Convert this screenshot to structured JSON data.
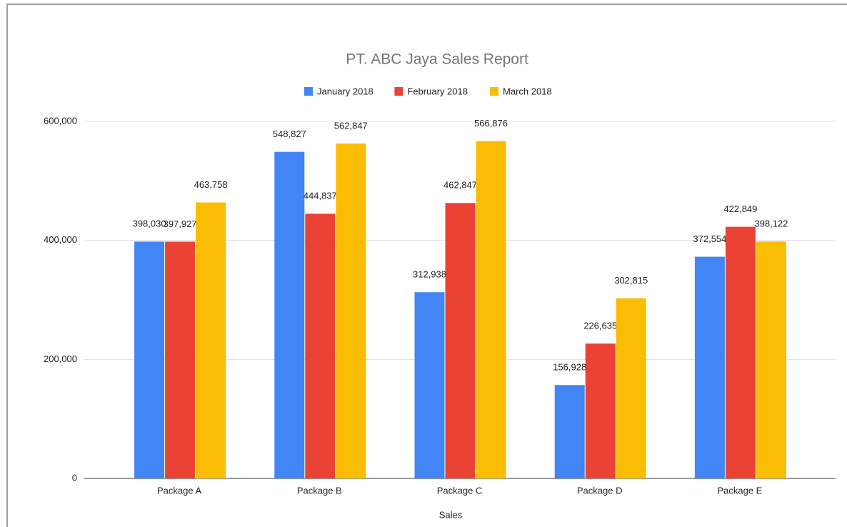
{
  "chart_data": {
    "type": "bar",
    "title": "PT. ABC Jaya Sales Report",
    "xlabel": "Sales",
    "categories": [
      "Package A",
      "Package B",
      "Package C",
      "Package D",
      "Package E"
    ],
    "series": [
      {
        "name": "January 2018",
        "color": "#4285f4",
        "values": [
          398030,
          548827,
          312938,
          156928,
          372554
        ],
        "value_labels": [
          "398,030",
          "548,827",
          "312,938",
          "156,928",
          "372,554"
        ]
      },
      {
        "name": "February 2018",
        "color": "#ea4335",
        "values": [
          397927,
          444837,
          462847,
          226635,
          422849
        ],
        "value_labels": [
          "397,927",
          "444,837",
          "462,847",
          "226,635",
          "422,849"
        ]
      },
      {
        "name": "March 2018",
        "color": "#fbbc04",
        "values": [
          463758,
          562847,
          566876,
          302815,
          398122
        ],
        "value_labels": [
          "463,758",
          "562,847",
          "566,876",
          "302,815",
          "398,122"
        ]
      }
    ],
    "ylim": [
      0,
      600000
    ],
    "yticks": [
      0,
      {
        "value": 200000,
        "label": "200,000"
      },
      {
        "value": 400000,
        "label": "400,000"
      },
      {
        "value": 600000,
        "label": "600,000"
      }
    ],
    "grid": true,
    "legend": "top"
  }
}
